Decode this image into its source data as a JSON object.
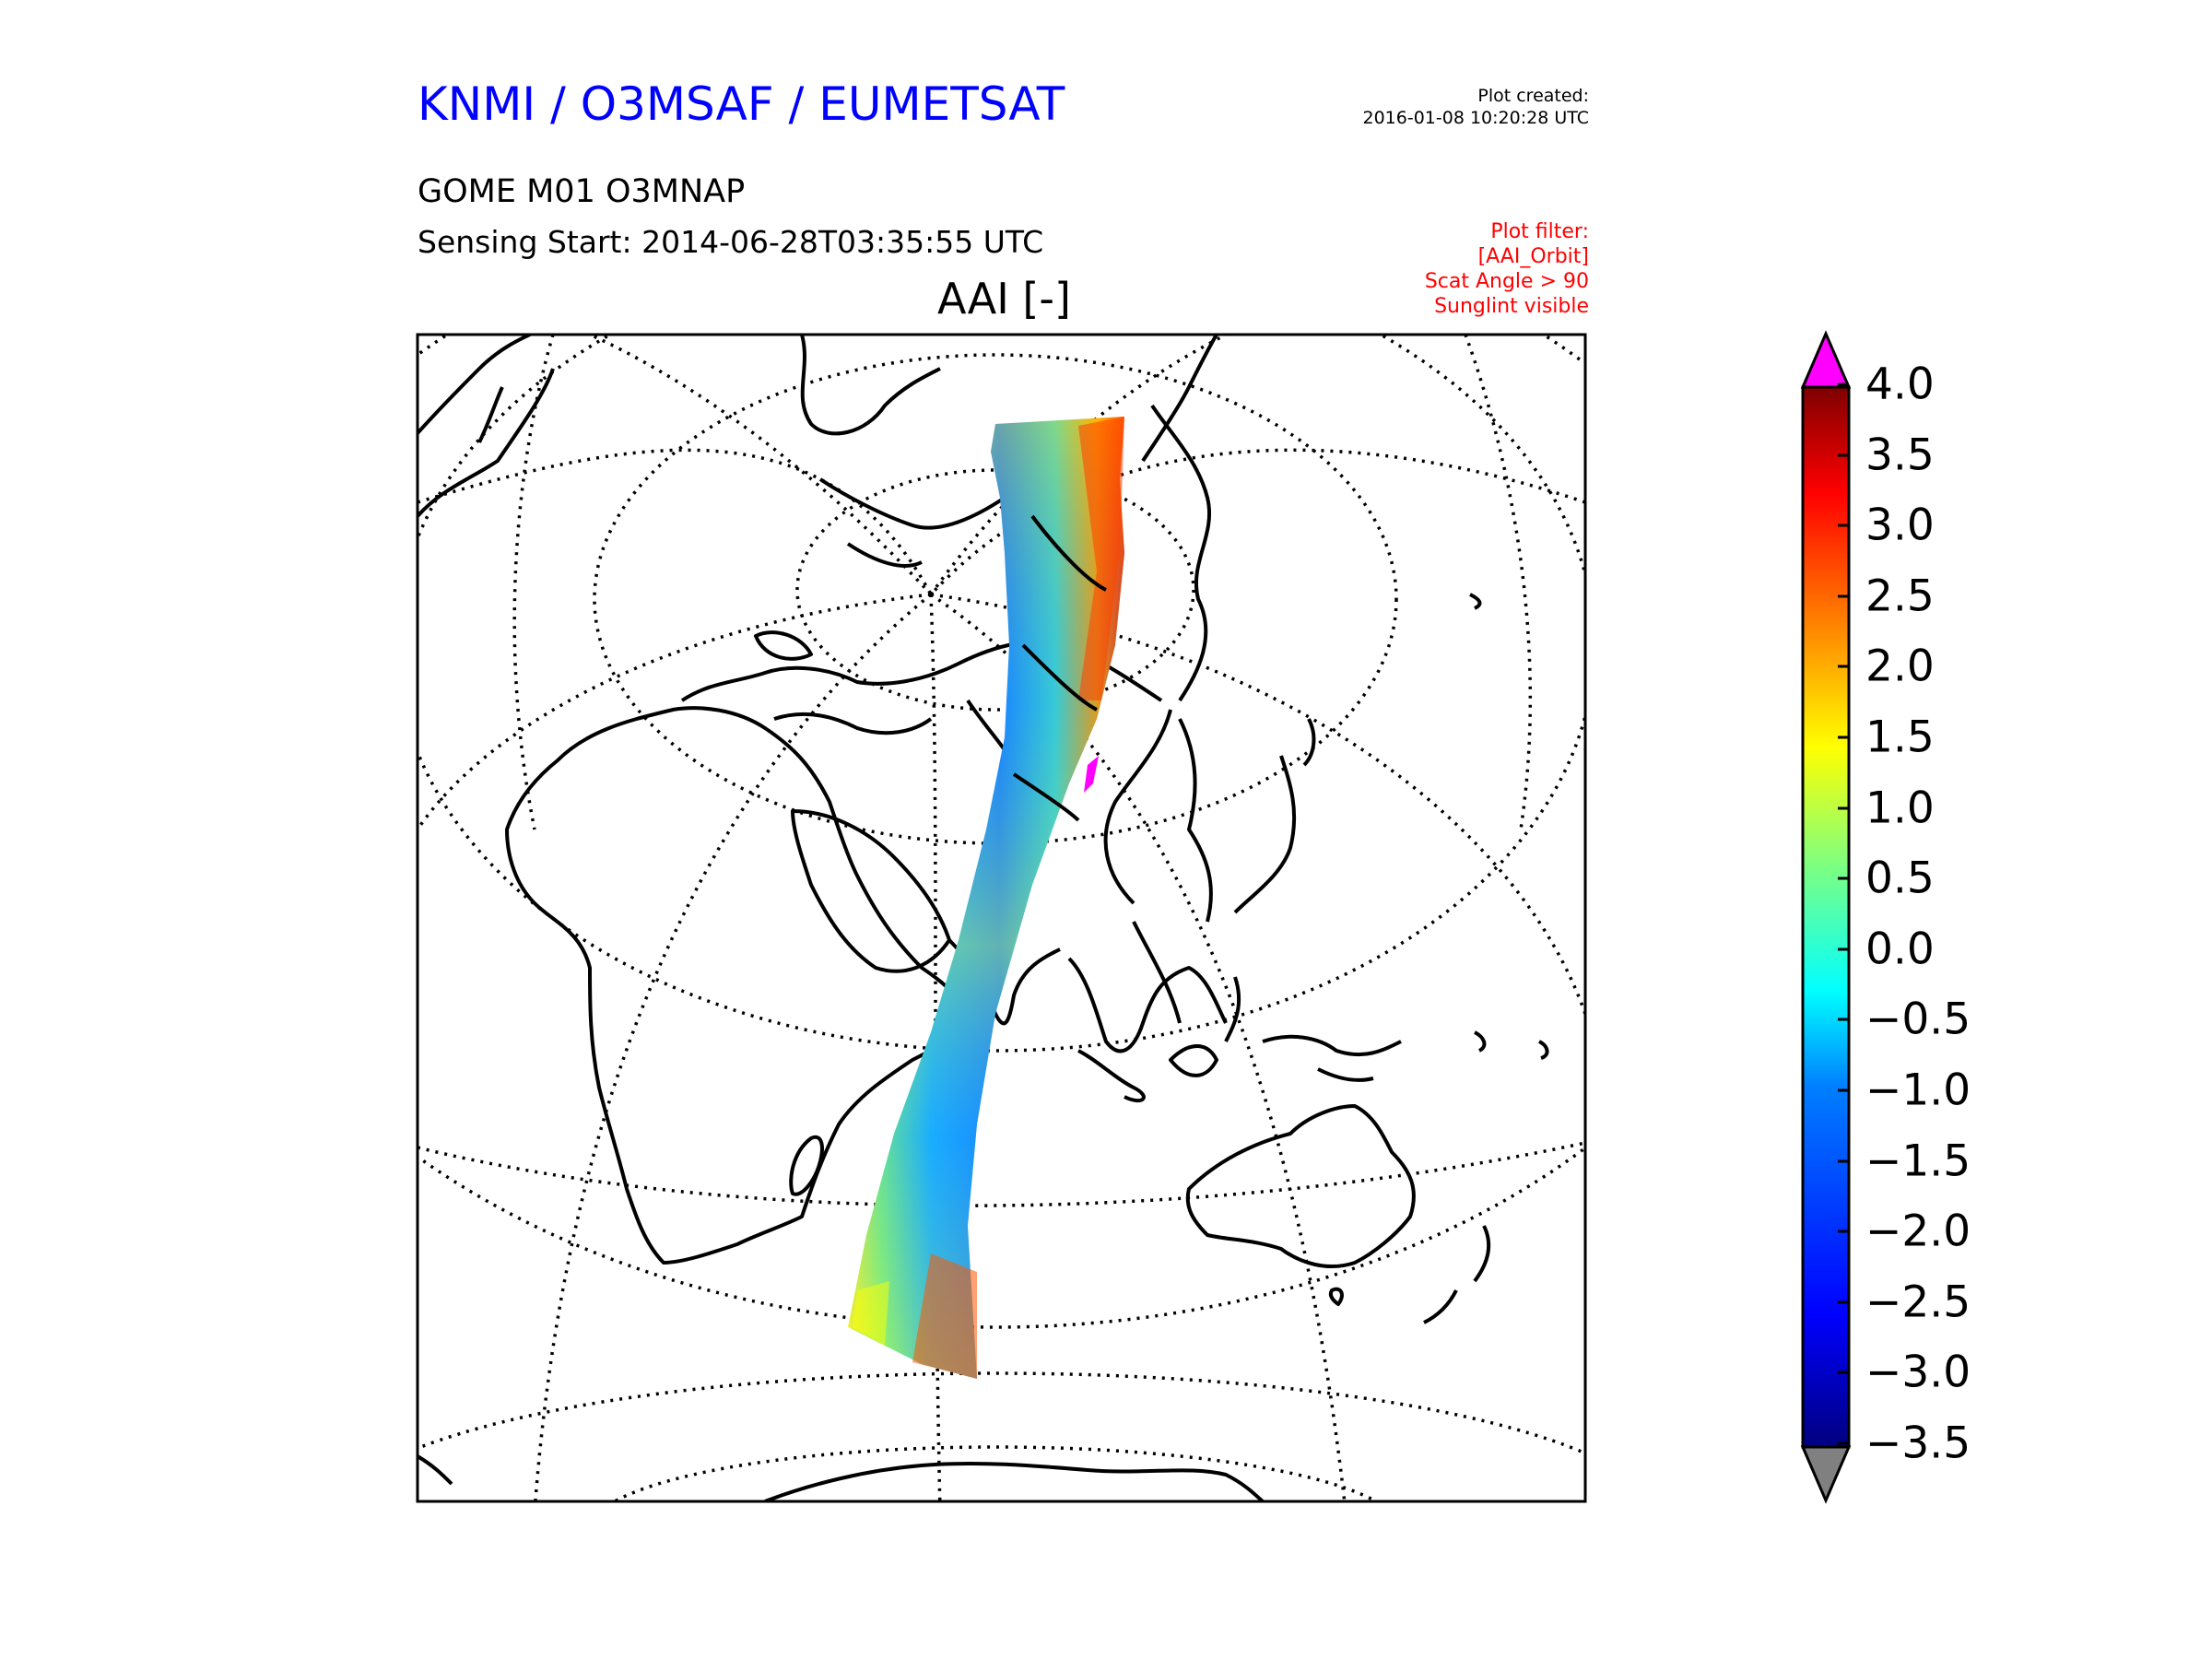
{
  "header": {
    "org_title": "KNMI / O3MSAF / EUMETSAT",
    "plot_created_label": "Plot created:",
    "plot_created_time": "2016-01-08 10:20:28 UTC",
    "product": "GOME M01 O3MNAP",
    "sensing_start": "Sensing Start: 2014-06-28T03:35:55 UTC",
    "map_title": "AAI [-]",
    "filter_lines": [
      "Plot filter:",
      "[AAI_Orbit]",
      "Scat Angle > 90",
      "Sunglint visible"
    ]
  },
  "colorbar": {
    "min": -3.5,
    "max": 4.0,
    "ticks": [
      "4.0",
      "3.5",
      "3.0",
      "2.5",
      "2.0",
      "1.5",
      "1.0",
      "0.5",
      "0.0",
      "−0.5",
      "−1.0",
      "−1.5",
      "−2.0",
      "−2.5",
      "−3.0",
      "−3.5"
    ],
    "over_color": "#ff00ff",
    "under_color": "#808080",
    "colormap": [
      "#00007f",
      "#0000ff",
      "#007fff",
      "#00ffff",
      "#7fff7f",
      "#ffff00",
      "#ff7f00",
      "#ff0000",
      "#7f0000"
    ]
  },
  "map": {
    "projection": "orthographic",
    "graticule": "dotted",
    "swath_colors": [
      "#1e90ff",
      "#00bfff",
      "#40e0d0",
      "#7fff7f",
      "#ffff00",
      "#ff8c00",
      "#ff2a00"
    ]
  }
}
